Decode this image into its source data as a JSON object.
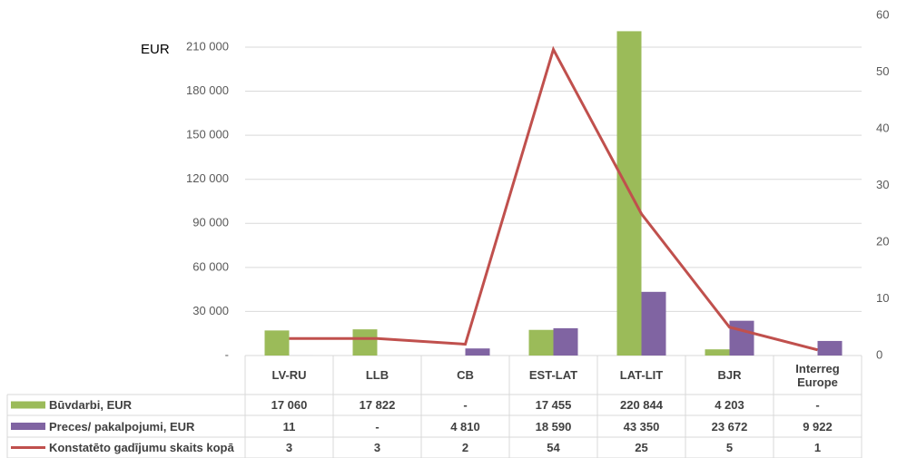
{
  "chart_data": {
    "type": "bar",
    "y_label": "EUR",
    "categories": [
      "LV-RU",
      "LLB",
      "CB",
      "EST-LAT",
      "LAT-LIT",
      "BJR",
      "Interreg Europe"
    ],
    "series": [
      {
        "name": "Būvdarbi, EUR",
        "color": "#9bbb59",
        "values": [
          17060,
          17822,
          null,
          17455,
          220844,
          4203,
          null
        ],
        "value_labels": [
          "17 060",
          "17 822",
          "-",
          "17 455",
          "220 844",
          "4 203",
          "-"
        ]
      },
      {
        "name": "Preces/ pakalpojumi, EUR",
        "color": "#8064a2",
        "values": [
          11,
          null,
          4810,
          18590,
          43350,
          23672,
          9922
        ],
        "value_labels": [
          "11",
          "-",
          "4 810",
          "18 590",
          "43 350",
          "23 672",
          "9 922"
        ]
      },
      {
        "name": "Konstatēto gadījumu skaits kopā",
        "type": "line",
        "axis": "y2",
        "color": "#c0504d",
        "values": [
          3,
          3,
          2,
          54,
          25,
          5,
          1
        ]
      }
    ],
    "ylim": [
      0,
      231600
    ],
    "yticks": [
      {
        "value": 0,
        "label": "-"
      },
      {
        "value": 30000,
        "label": "30 000"
      },
      {
        "value": 60000,
        "label": "60 000"
      },
      {
        "value": 90000,
        "label": "90 000"
      },
      {
        "value": 120000,
        "label": "120 000"
      },
      {
        "value": 150000,
        "label": "150 000"
      },
      {
        "value": 180000,
        "label": "180 000"
      },
      {
        "value": 210000,
        "label": "210 000"
      }
    ],
    "y2lim": [
      0,
      60
    ],
    "y2ticks": [
      0,
      10,
      20,
      30,
      40,
      50,
      60
    ],
    "grid": true
  }
}
